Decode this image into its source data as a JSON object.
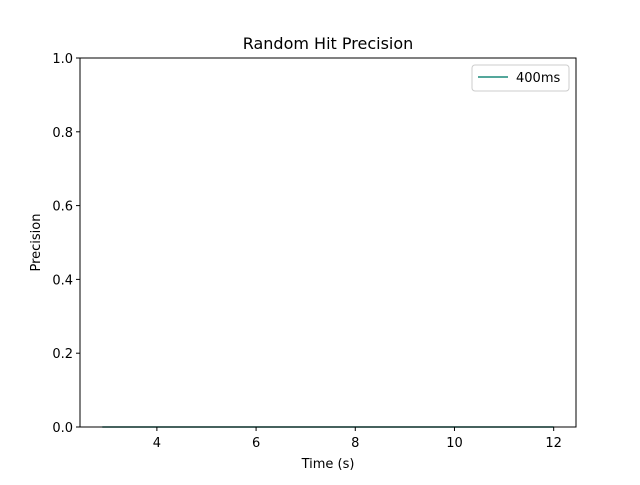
{
  "chart_data": {
    "type": "line",
    "title": "Random Hit Precision",
    "xlabel": "Time (s)",
    "ylabel": "Precision",
    "xlim": [
      2.45,
      12.45
    ],
    "ylim": [
      0,
      1.0
    ],
    "x_ticks": [
      4,
      6,
      8,
      10,
      12
    ],
    "y_ticks": [
      0.0,
      0.2,
      0.4,
      0.6,
      0.8,
      1.0
    ],
    "x_tick_labels": [
      "4",
      "6",
      "8",
      "10",
      "12"
    ],
    "y_tick_labels": [
      "0.0",
      "0.2",
      "0.4",
      "0.6",
      "0.8",
      "1.0"
    ],
    "grid": false,
    "legend_position": "top-right",
    "series": [
      {
        "name": "400ms",
        "color": "#1b8a7a",
        "x": [
          2.9,
          12.0
        ],
        "y": [
          0.0,
          0.0
        ]
      }
    ]
  }
}
